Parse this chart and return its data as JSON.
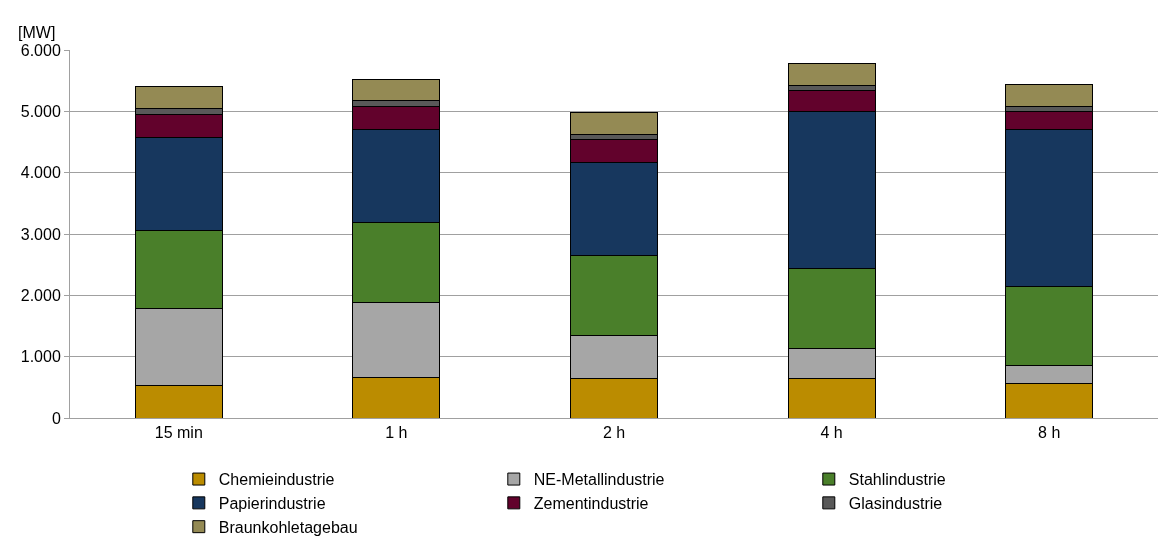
{
  "chart_data": {
    "type": "bar",
    "stacked": true,
    "ylabel": "[MW]",
    "categories": [
      "15 min",
      "1 h",
      "2 h",
      "4 h",
      "8 h"
    ],
    "series": [
      {
        "name": "Chemieindustrie",
        "color": "#bb8c00",
        "values": [
          530,
          660,
          650,
          640,
          570
        ]
      },
      {
        "name": "NE-Metallindustrie",
        "color": "#a6a6a6",
        "values": [
          1250,
          1230,
          700,
          500,
          290
        ]
      },
      {
        "name": "Stahlindustrie",
        "color": "#4a7f2a",
        "values": [
          1280,
          1300,
          1300,
          1300,
          1280
        ]
      },
      {
        "name": "Papierindustrie",
        "color": "#17375e",
        "values": [
          1510,
          1510,
          1510,
          2560,
          2570
        ]
      },
      {
        "name": "Zementindustrie",
        "color": "#62022c",
        "values": [
          380,
          380,
          380,
          340,
          290
        ]
      },
      {
        "name": "Glasindustrie",
        "color": "#595959",
        "values": [
          90,
          90,
          90,
          80,
          80
        ]
      },
      {
        "name": "Braunkohletagebau",
        "color": "#948a54",
        "values": [
          370,
          350,
          350,
          360,
          360
        ]
      }
    ],
    "ylim": [
      0,
      6000
    ],
    "yticks": [
      0,
      {
        "value": 1000,
        "label": "1.000"
      },
      {
        "value": 2000,
        "label": "2.000"
      },
      {
        "value": 3000,
        "label": "3.000"
      },
      {
        "value": 4000,
        "label": "4.000"
      },
      {
        "value": 5000,
        "label": "5.000"
      },
      {
        "value": 6000,
        "label": "6.000"
      }
    ],
    "grid": "y",
    "legend": "bottom"
  }
}
